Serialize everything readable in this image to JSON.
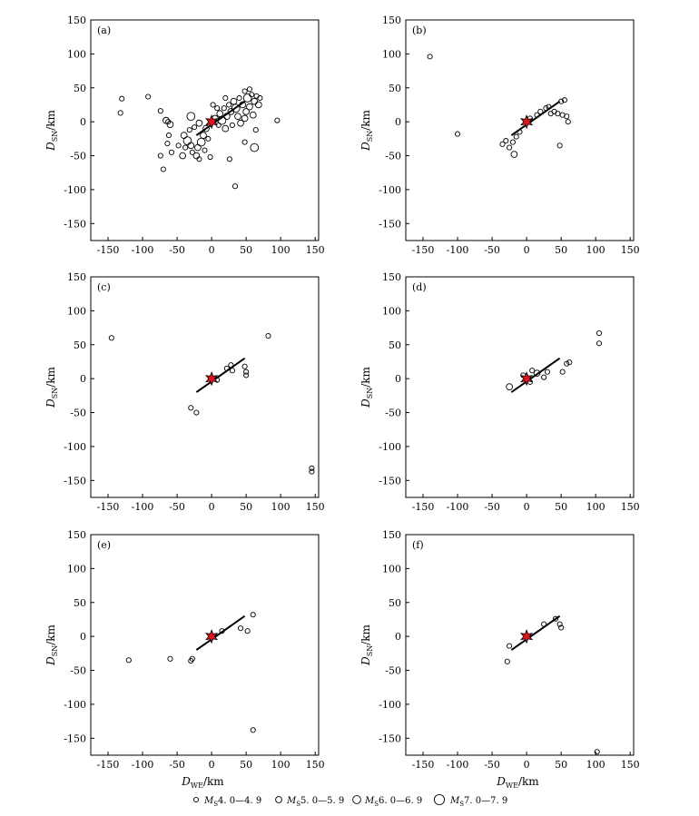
{
  "chart_data": [
    {
      "type": "scatter",
      "panel_label": "(a)",
      "xlabel": "D_WE/km",
      "ylabel": "D_SN/km",
      "xlim": [
        -175,
        155
      ],
      "ylim": [
        -175,
        150
      ],
      "xticks": [
        -150,
        -100,
        -50,
        0,
        50,
        100,
        150
      ],
      "yticks": [
        150,
        100,
        50,
        0,
        -50,
        -100,
        -150
      ],
      "show_xlabel": false,
      "fault": [
        [
          -22,
          -20
        ],
        [
          48,
          30
        ]
      ],
      "epicenter": [
        0,
        0
      ],
      "points": [
        {
          "x": -130,
          "y": 34,
          "m": 4.5
        },
        {
          "x": -132,
          "y": 13,
          "m": 4.5
        },
        {
          "x": -92,
          "y": 37,
          "m": 4.5
        },
        {
          "x": -74,
          "y": 16,
          "m": 4.5
        },
        {
          "x": -66,
          "y": 2,
          "m": 5.5
        },
        {
          "x": -60,
          "y": -4,
          "m": 5.5
        },
        {
          "x": -63,
          "y": 0,
          "m": 4.5
        },
        {
          "x": -62,
          "y": -20,
          "m": 4.5
        },
        {
          "x": -64,
          "y": -32,
          "m": 4.5
        },
        {
          "x": -58,
          "y": -45,
          "m": 4.5
        },
        {
          "x": -74,
          "y": -50,
          "m": 4.5
        },
        {
          "x": -70,
          "y": -70,
          "m": 4.5
        },
        {
          "x": -40,
          "y": -20,
          "m": 5.5
        },
        {
          "x": -35,
          "y": -28,
          "m": 6.5
        },
        {
          "x": -30,
          "y": -35,
          "m": 5.5
        },
        {
          "x": -28,
          "y": -45,
          "m": 4.5
        },
        {
          "x": -22,
          "y": -50,
          "m": 5.5
        },
        {
          "x": -18,
          "y": -55,
          "m": 4.5
        },
        {
          "x": -20,
          "y": -38,
          "m": 5.5
        },
        {
          "x": -15,
          "y": -30,
          "m": 6.5
        },
        {
          "x": -12,
          "y": -20,
          "m": 5.5
        },
        {
          "x": -10,
          "y": -42,
          "m": 4.5
        },
        {
          "x": -8,
          "y": -10,
          "m": 5.5
        },
        {
          "x": -5,
          "y": -25,
          "m": 4.5
        },
        {
          "x": -38,
          "y": -38,
          "m": 4.5
        },
        {
          "x": -32,
          "y": -12,
          "m": 4.5
        },
        {
          "x": -25,
          "y": -8,
          "m": 4.5
        },
        {
          "x": -30,
          "y": 8,
          "m": 6.5
        },
        {
          "x": -18,
          "y": -2,
          "m": 5.5
        },
        {
          "x": -42,
          "y": -50,
          "m": 5.5
        },
        {
          "x": 5,
          "y": 5,
          "m": 5.5
        },
        {
          "x": 10,
          "y": -5,
          "m": 4.5
        },
        {
          "x": 12,
          "y": 12,
          "m": 5.5
        },
        {
          "x": 15,
          "y": 2,
          "m": 6.5
        },
        {
          "x": 18,
          "y": 20,
          "m": 4.5
        },
        {
          "x": 20,
          "y": -10,
          "m": 5.5
        },
        {
          "x": 22,
          "y": 8,
          "m": 5.5
        },
        {
          "x": 25,
          "y": 25,
          "m": 4.5
        },
        {
          "x": 28,
          "y": 15,
          "m": 5.5
        },
        {
          "x": 30,
          "y": -5,
          "m": 4.5
        },
        {
          "x": 32,
          "y": 30,
          "m": 5.5
        },
        {
          "x": 35,
          "y": 20,
          "m": 6.5
        },
        {
          "x": 38,
          "y": 8,
          "m": 5.5
        },
        {
          "x": 40,
          "y": 35,
          "m": 4.5
        },
        {
          "x": 42,
          "y": -2,
          "m": 5.5
        },
        {
          "x": 45,
          "y": 25,
          "m": 5.5
        },
        {
          "x": 48,
          "y": 45,
          "m": 4.5
        },
        {
          "x": 50,
          "y": 15,
          "m": 5.5
        },
        {
          "x": 52,
          "y": 35,
          "m": 6.5
        },
        {
          "x": 55,
          "y": 22,
          "m": 5.5
        },
        {
          "x": 58,
          "y": 40,
          "m": 4.5
        },
        {
          "x": 60,
          "y": 10,
          "m": 5.5
        },
        {
          "x": 62,
          "y": 30,
          "m": 5.5
        },
        {
          "x": 65,
          "y": 38,
          "m": 4.5
        },
        {
          "x": 68,
          "y": 25,
          "m": 5.5
        },
        {
          "x": 70,
          "y": 35,
          "m": 4.5
        },
        {
          "x": 55,
          "y": 48,
          "m": 4.5
        },
        {
          "x": 48,
          "y": 5,
          "m": 5.5
        },
        {
          "x": 8,
          "y": 20,
          "m": 4.5
        },
        {
          "x": 2,
          "y": 25,
          "m": 4.5
        },
        {
          "x": 26,
          "y": -55,
          "m": 4.5
        },
        {
          "x": 34,
          "y": -95,
          "m": 4.5
        },
        {
          "x": 48,
          "y": -30,
          "m": 4.5
        },
        {
          "x": 62,
          "y": -38,
          "m": 6.5
        },
        {
          "x": 95,
          "y": 2,
          "m": 4.5
        },
        {
          "x": -48,
          "y": -35,
          "m": 4.5
        },
        {
          "x": -2,
          "y": -52,
          "m": 4.5
        },
        {
          "x": 64,
          "y": -12,
          "m": 4.5
        },
        {
          "x": 20,
          "y": 35,
          "m": 4.5
        }
      ]
    },
    {
      "type": "scatter",
      "panel_label": "(b)",
      "xlabel": "D_WE/km",
      "ylabel": "D_SN/km",
      "xlim": [
        -175,
        155
      ],
      "ylim": [
        -175,
        150
      ],
      "xticks": [
        -150,
        -100,
        -50,
        0,
        50,
        100,
        150
      ],
      "yticks": [
        150,
        100,
        50,
        0,
        -50,
        -100,
        -150
      ],
      "show_xlabel": false,
      "fault": [
        [
          -22,
          -20
        ],
        [
          48,
          30
        ]
      ],
      "epicenter": [
        0,
        0
      ],
      "points": [
        {
          "x": -140,
          "y": 96,
          "m": 4.5
        },
        {
          "x": -100,
          "y": -18,
          "m": 4.5
        },
        {
          "x": -35,
          "y": -33,
          "m": 4.5
        },
        {
          "x": -30,
          "y": -28,
          "m": 4.5
        },
        {
          "x": -25,
          "y": -38,
          "m": 4.5
        },
        {
          "x": -20,
          "y": -30,
          "m": 4.5
        },
        {
          "x": -18,
          "y": -48,
          "m": 5.5
        },
        {
          "x": -15,
          "y": -22,
          "m": 4.5
        },
        {
          "x": -10,
          "y": -15,
          "m": 4.5
        },
        {
          "x": 15,
          "y": 10,
          "m": 4.5
        },
        {
          "x": 20,
          "y": 15,
          "m": 4.5
        },
        {
          "x": 28,
          "y": 20,
          "m": 4.5
        },
        {
          "x": 32,
          "y": 22,
          "m": 4.5
        },
        {
          "x": 35,
          "y": 12,
          "m": 4.5
        },
        {
          "x": 40,
          "y": 15,
          "m": 4.5
        },
        {
          "x": 45,
          "y": 12,
          "m": 4.5
        },
        {
          "x": 50,
          "y": 30,
          "m": 4.5
        },
        {
          "x": 55,
          "y": 32,
          "m": 4.5
        },
        {
          "x": 52,
          "y": 10,
          "m": 4.5
        },
        {
          "x": 58,
          "y": 8,
          "m": 4.5
        },
        {
          "x": 60,
          "y": 0,
          "m": 4.5
        },
        {
          "x": 48,
          "y": -35,
          "m": 4.5
        },
        {
          "x": 5,
          "y": 5,
          "m": 4.5
        }
      ]
    },
    {
      "type": "scatter",
      "panel_label": "(c)",
      "xlabel": "D_WE/km",
      "ylabel": "D_SN/km",
      "xlim": [
        -175,
        155
      ],
      "ylim": [
        -175,
        150
      ],
      "xticks": [
        -150,
        -100,
        -50,
        0,
        50,
        100,
        150
      ],
      "yticks": [
        150,
        100,
        50,
        0,
        -50,
        -100,
        -150
      ],
      "show_xlabel": false,
      "fault": [
        [
          -22,
          -20
        ],
        [
          48,
          30
        ]
      ],
      "epicenter": [
        0,
        0
      ],
      "points": [
        {
          "x": -145,
          "y": 60,
          "m": 4.5
        },
        {
          "x": 82,
          "y": 63,
          "m": 4.5
        },
        {
          "x": -30,
          "y": -43,
          "m": 4.5
        },
        {
          "x": -22,
          "y": -50,
          "m": 4.5
        },
        {
          "x": 8,
          "y": -2,
          "m": 4.5
        },
        {
          "x": 22,
          "y": 15,
          "m": 4.5
        },
        {
          "x": 28,
          "y": 20,
          "m": 4.5
        },
        {
          "x": 30,
          "y": 12,
          "m": 4.5
        },
        {
          "x": 48,
          "y": 18,
          "m": 4.5
        },
        {
          "x": 50,
          "y": 5,
          "m": 4.5
        },
        {
          "x": 50,
          "y": 10,
          "m": 4.5
        },
        {
          "x": 145,
          "y": -132,
          "m": 4.5
        },
        {
          "x": 145,
          "y": -137,
          "m": 4.5
        }
      ]
    },
    {
      "type": "scatter",
      "panel_label": "(d)",
      "xlabel": "D_WE/km",
      "ylabel": "D_SN/km",
      "xlim": [
        -175,
        155
      ],
      "ylim": [
        -175,
        150
      ],
      "xticks": [
        -150,
        -100,
        -50,
        0,
        50,
        100,
        150
      ],
      "yticks": [
        150,
        100,
        50,
        0,
        -50,
        -100,
        -150
      ],
      "show_xlabel": false,
      "fault": [
        [
          -22,
          -20
        ],
        [
          48,
          30
        ]
      ],
      "epicenter": [
        0,
        0
      ],
      "points": [
        {
          "x": 105,
          "y": 67,
          "m": 4.5
        },
        {
          "x": 105,
          "y": 52,
          "m": 4.5
        },
        {
          "x": 58,
          "y": 22,
          "m": 4.5
        },
        {
          "x": 62,
          "y": 24,
          "m": 4.5
        },
        {
          "x": 52,
          "y": 10,
          "m": 4.5
        },
        {
          "x": 30,
          "y": 10,
          "m": 4.5
        },
        {
          "x": 25,
          "y": 2,
          "m": 4.5
        },
        {
          "x": 15,
          "y": 8,
          "m": 5.5
        },
        {
          "x": 8,
          "y": 12,
          "m": 4.5
        },
        {
          "x": 5,
          "y": -5,
          "m": 4.5
        },
        {
          "x": -5,
          "y": 5,
          "m": 4.5
        },
        {
          "x": -25,
          "y": -12,
          "m": 5.5
        }
      ]
    },
    {
      "type": "scatter",
      "panel_label": "(e)",
      "xlabel": "D_WE/km",
      "ylabel": "D_SN/km",
      "xlim": [
        -175,
        155
      ],
      "ylim": [
        -175,
        150
      ],
      "xticks": [
        -150,
        -100,
        -50,
        0,
        50,
        100,
        150
      ],
      "yticks": [
        150,
        100,
        50,
        0,
        -50,
        -100,
        -150
      ],
      "show_xlabel": true,
      "fault": [
        [
          -22,
          -20
        ],
        [
          48,
          30
        ]
      ],
      "epicenter": [
        0,
        0
      ],
      "points": [
        {
          "x": -120,
          "y": -35,
          "m": 4.5
        },
        {
          "x": -60,
          "y": -33,
          "m": 4.5
        },
        {
          "x": -30,
          "y": -36,
          "m": 4.5
        },
        {
          "x": -28,
          "y": -33,
          "m": 4.5
        },
        {
          "x": 15,
          "y": 8,
          "m": 4.5
        },
        {
          "x": 42,
          "y": 12,
          "m": 4.5
        },
        {
          "x": 52,
          "y": 8,
          "m": 4.5
        },
        {
          "x": 60,
          "y": 32,
          "m": 4.5
        },
        {
          "x": 60,
          "y": -138,
          "m": 4.5
        }
      ]
    },
    {
      "type": "scatter",
      "panel_label": "(f)",
      "xlabel": "D_WE/km",
      "ylabel": "D_SN/km",
      "xlim": [
        -175,
        155
      ],
      "ylim": [
        -175,
        150
      ],
      "xticks": [
        -150,
        -100,
        -50,
        0,
        50,
        100,
        150
      ],
      "yticks": [
        150,
        100,
        50,
        0,
        -50,
        -100,
        -150
      ],
      "show_xlabel": true,
      "fault": [
        [
          -22,
          -20
        ],
        [
          48,
          30
        ]
      ],
      "epicenter": [
        0,
        0
      ],
      "points": [
        {
          "x": -28,
          "y": -37,
          "m": 4.5
        },
        {
          "x": -25,
          "y": -14,
          "m": 4.5
        },
        {
          "x": 25,
          "y": 18,
          "m": 4.5
        },
        {
          "x": 42,
          "y": 26,
          "m": 4.5
        },
        {
          "x": 48,
          "y": 18,
          "m": 4.5
        },
        {
          "x": 50,
          "y": 13,
          "m": 4.5
        },
        {
          "x": 102,
          "y": -170,
          "m": 4.5
        }
      ]
    }
  ],
  "legend": [
    {
      "label": "MS4.0—4.9",
      "prefix": "M",
      "sub": "S",
      "range": "4. 0—4. 9",
      "m": 4.5
    },
    {
      "label": "MS5.0—5.9",
      "prefix": "M",
      "sub": "S",
      "range": "5. 0—5. 9",
      "m": 5.5
    },
    {
      "label": "MS6.0—6.9",
      "prefix": "M",
      "sub": "S",
      "range": "6. 0—6. 9",
      "m": 6.5
    },
    {
      "label": "MS7.0—7.9",
      "prefix": "M",
      "sub": "S",
      "range": "7. 0—7. 9",
      "m": 7.5
    }
  ]
}
